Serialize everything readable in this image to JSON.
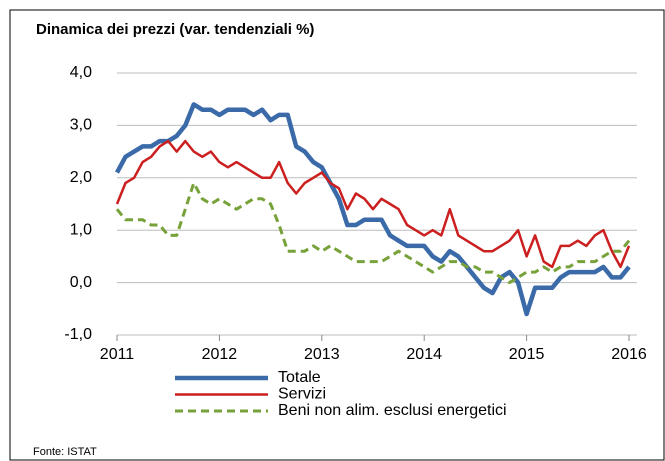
{
  "chart_data": {
    "type": "line",
    "title": "Dinamica dei prezzi (var. tendenziali %)",
    "source": "Fonte: ISTAT",
    "x": [
      2011,
      2011.083,
      2011.167,
      2011.25,
      2011.333,
      2011.417,
      2011.5,
      2011.583,
      2011.667,
      2011.75,
      2011.833,
      2011.917,
      2012,
      2012.083,
      2012.167,
      2012.25,
      2012.333,
      2012.417,
      2012.5,
      2012.583,
      2012.667,
      2012.75,
      2012.833,
      2012.917,
      2013,
      2013.083,
      2013.167,
      2013.25,
      2013.333,
      2013.417,
      2013.5,
      2013.583,
      2013.667,
      2013.75,
      2013.833,
      2013.917,
      2014,
      2014.083,
      2014.167,
      2014.25,
      2014.333,
      2014.417,
      2014.5,
      2014.583,
      2014.667,
      2014.75,
      2014.833,
      2014.917,
      2015,
      2015.083,
      2015.167,
      2015.25,
      2015.333,
      2015.417,
      2015.5,
      2015.583,
      2015.667,
      2015.75,
      2015.833,
      2015.917,
      2016
    ],
    "series": [
      {
        "name": "Totale",
        "color": "#3b6aa8",
        "dash": false,
        "width": 4.5,
        "values": [
          2.1,
          2.4,
          2.5,
          2.6,
          2.6,
          2.7,
          2.7,
          2.8,
          3.0,
          3.4,
          3.3,
          3.3,
          3.2,
          3.3,
          3.3,
          3.3,
          3.2,
          3.3,
          3.1,
          3.2,
          3.2,
          2.6,
          2.5,
          2.3,
          2.2,
          1.9,
          1.6,
          1.1,
          1.1,
          1.2,
          1.2,
          1.2,
          0.9,
          0.8,
          0.7,
          0.7,
          0.7,
          0.5,
          0.4,
          0.6,
          0.5,
          0.3,
          0.1,
          -0.1,
          -0.2,
          0.1,
          0.2,
          0.0,
          -0.6,
          -0.1,
          -0.1,
          -0.1,
          0.1,
          0.2,
          0.2,
          0.2,
          0.2,
          0.3,
          0.1,
          0.1,
          0.3
        ]
      },
      {
        "name": "Servizi",
        "color": "#cc1f1f",
        "dash": false,
        "width": 2.5,
        "values": [
          1.5,
          1.9,
          2.0,
          2.3,
          2.4,
          2.6,
          2.7,
          2.5,
          2.7,
          2.5,
          2.4,
          2.5,
          2.3,
          2.2,
          2.3,
          2.2,
          2.1,
          2.0,
          2.0,
          2.3,
          1.9,
          1.7,
          1.9,
          2.0,
          2.1,
          1.9,
          1.8,
          1.4,
          1.7,
          1.6,
          1.4,
          1.6,
          1.5,
          1.4,
          1.1,
          1.0,
          0.9,
          1.0,
          0.9,
          1.4,
          0.9,
          0.8,
          0.7,
          0.6,
          0.6,
          0.7,
          0.8,
          1.0,
          0.5,
          0.9,
          0.4,
          0.3,
          0.7,
          0.7,
          0.8,
          0.7,
          0.9,
          1.0,
          0.6,
          0.3,
          0.7
        ]
      },
      {
        "name": "Beni non alim. esclusi energetici",
        "color": "#77a23a",
        "dash": true,
        "width": 3,
        "values": [
          1.4,
          1.2,
          1.2,
          1.2,
          1.1,
          1.1,
          0.9,
          0.9,
          1.4,
          1.9,
          1.6,
          1.5,
          1.6,
          1.5,
          1.4,
          1.5,
          1.6,
          1.6,
          1.5,
          1.1,
          0.6,
          0.6,
          0.6,
          0.7,
          0.6,
          0.7,
          0.6,
          0.5,
          0.4,
          0.4,
          0.4,
          0.4,
          0.5,
          0.6,
          0.5,
          0.4,
          0.3,
          0.2,
          0.3,
          0.4,
          0.4,
          0.3,
          0.3,
          0.2,
          0.2,
          0.1,
          0.0,
          0.1,
          0.2,
          0.2,
          0.3,
          0.2,
          0.3,
          0.3,
          0.4,
          0.4,
          0.4,
          0.5,
          0.6,
          0.6,
          0.8
        ]
      }
    ],
    "xlim": [
      2011,
      2016
    ],
    "xticks": [
      2011,
      2012,
      2013,
      2014,
      2015,
      2016
    ],
    "ylim": [
      -1,
      4
    ],
    "yticks": [
      {
        "value": -1,
        "label": "-1,0"
      },
      {
        "value": 0,
        "label": "0,0"
      },
      {
        "value": 1,
        "label": "1,0"
      },
      {
        "value": 2,
        "label": "2,0"
      },
      {
        "value": 3,
        "label": "3,0"
      },
      {
        "value": 4,
        "label": "4,0"
      }
    ],
    "grid": true
  }
}
